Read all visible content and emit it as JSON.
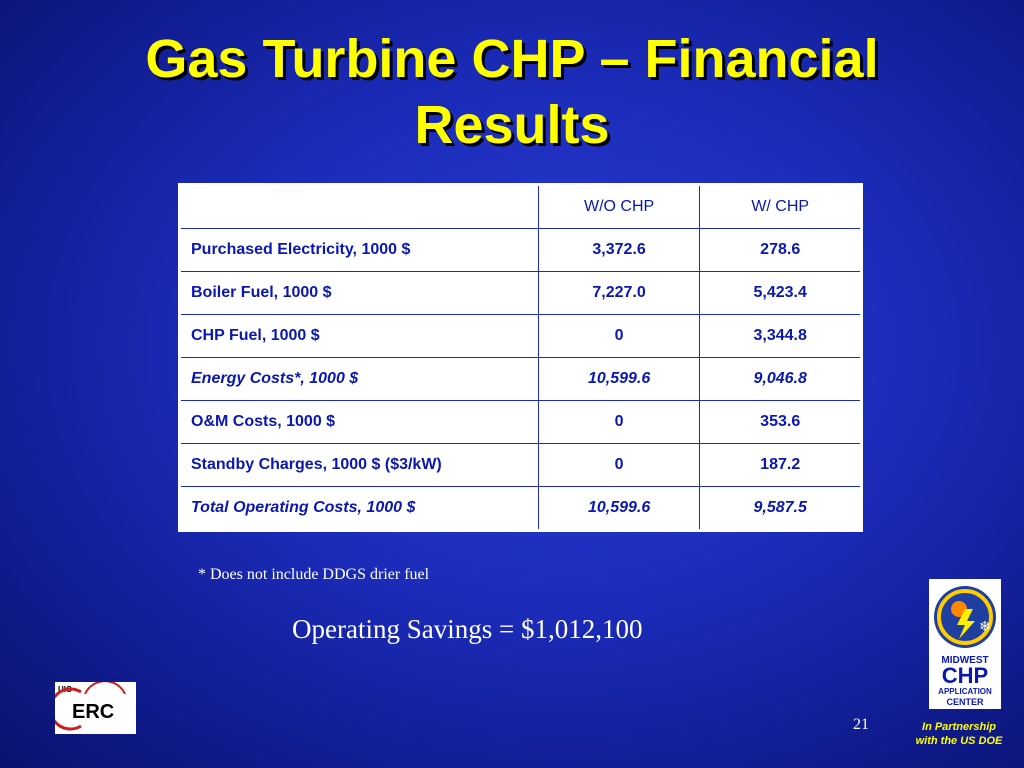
{
  "slide": {
    "title_line1": "Gas Turbine CHP – Financial",
    "title_line2": "Results",
    "footnote": "* Does not include DDGS drier fuel",
    "savings": "Operating Savings = $1,012,100",
    "page_number": "21",
    "partner_line1": "In Partnership",
    "partner_line2": "with the US DOE"
  },
  "table": {
    "headers": [
      "",
      "W/O CHP",
      "W/ CHP"
    ],
    "rows": [
      {
        "label": "Purchased Electricity, 1000 $",
        "wo": "3,372.6",
        "w": "278.6"
      },
      {
        "label": "Boiler Fuel, 1000 $",
        "wo": "7,227.0",
        "w": "5,423.4"
      },
      {
        "label": "CHP Fuel, 1000 $",
        "wo": "0",
        "w": "3,344.8"
      },
      {
        "label": "Energy Costs*, 1000 $",
        "wo": "10,599.6",
        "w": "9,046.8"
      },
      {
        "label": "O&M Costs, 1000 $",
        "wo": "0",
        "w": "353.6"
      },
      {
        "label": "Standby Charges, 1000 $ ($3/kW)",
        "wo": "0",
        "w": "187.2"
      },
      {
        "label": "Total Operating Costs, 1000 $",
        "wo": "10,599.6",
        "w": "9,587.5"
      }
    ]
  },
  "logos": {
    "uic_erc": {
      "small": "UIC",
      "main": "ERC"
    },
    "midwest_chp": {
      "line1": "MIDWEST",
      "line2": "CHP",
      "line3": "APPLICATION",
      "line4": "CENTER"
    }
  },
  "colors": {
    "background": "#1b2bb8",
    "title": "#ffff00",
    "table_text": "#0a18b0",
    "erc_red": "#cc1f1f"
  }
}
